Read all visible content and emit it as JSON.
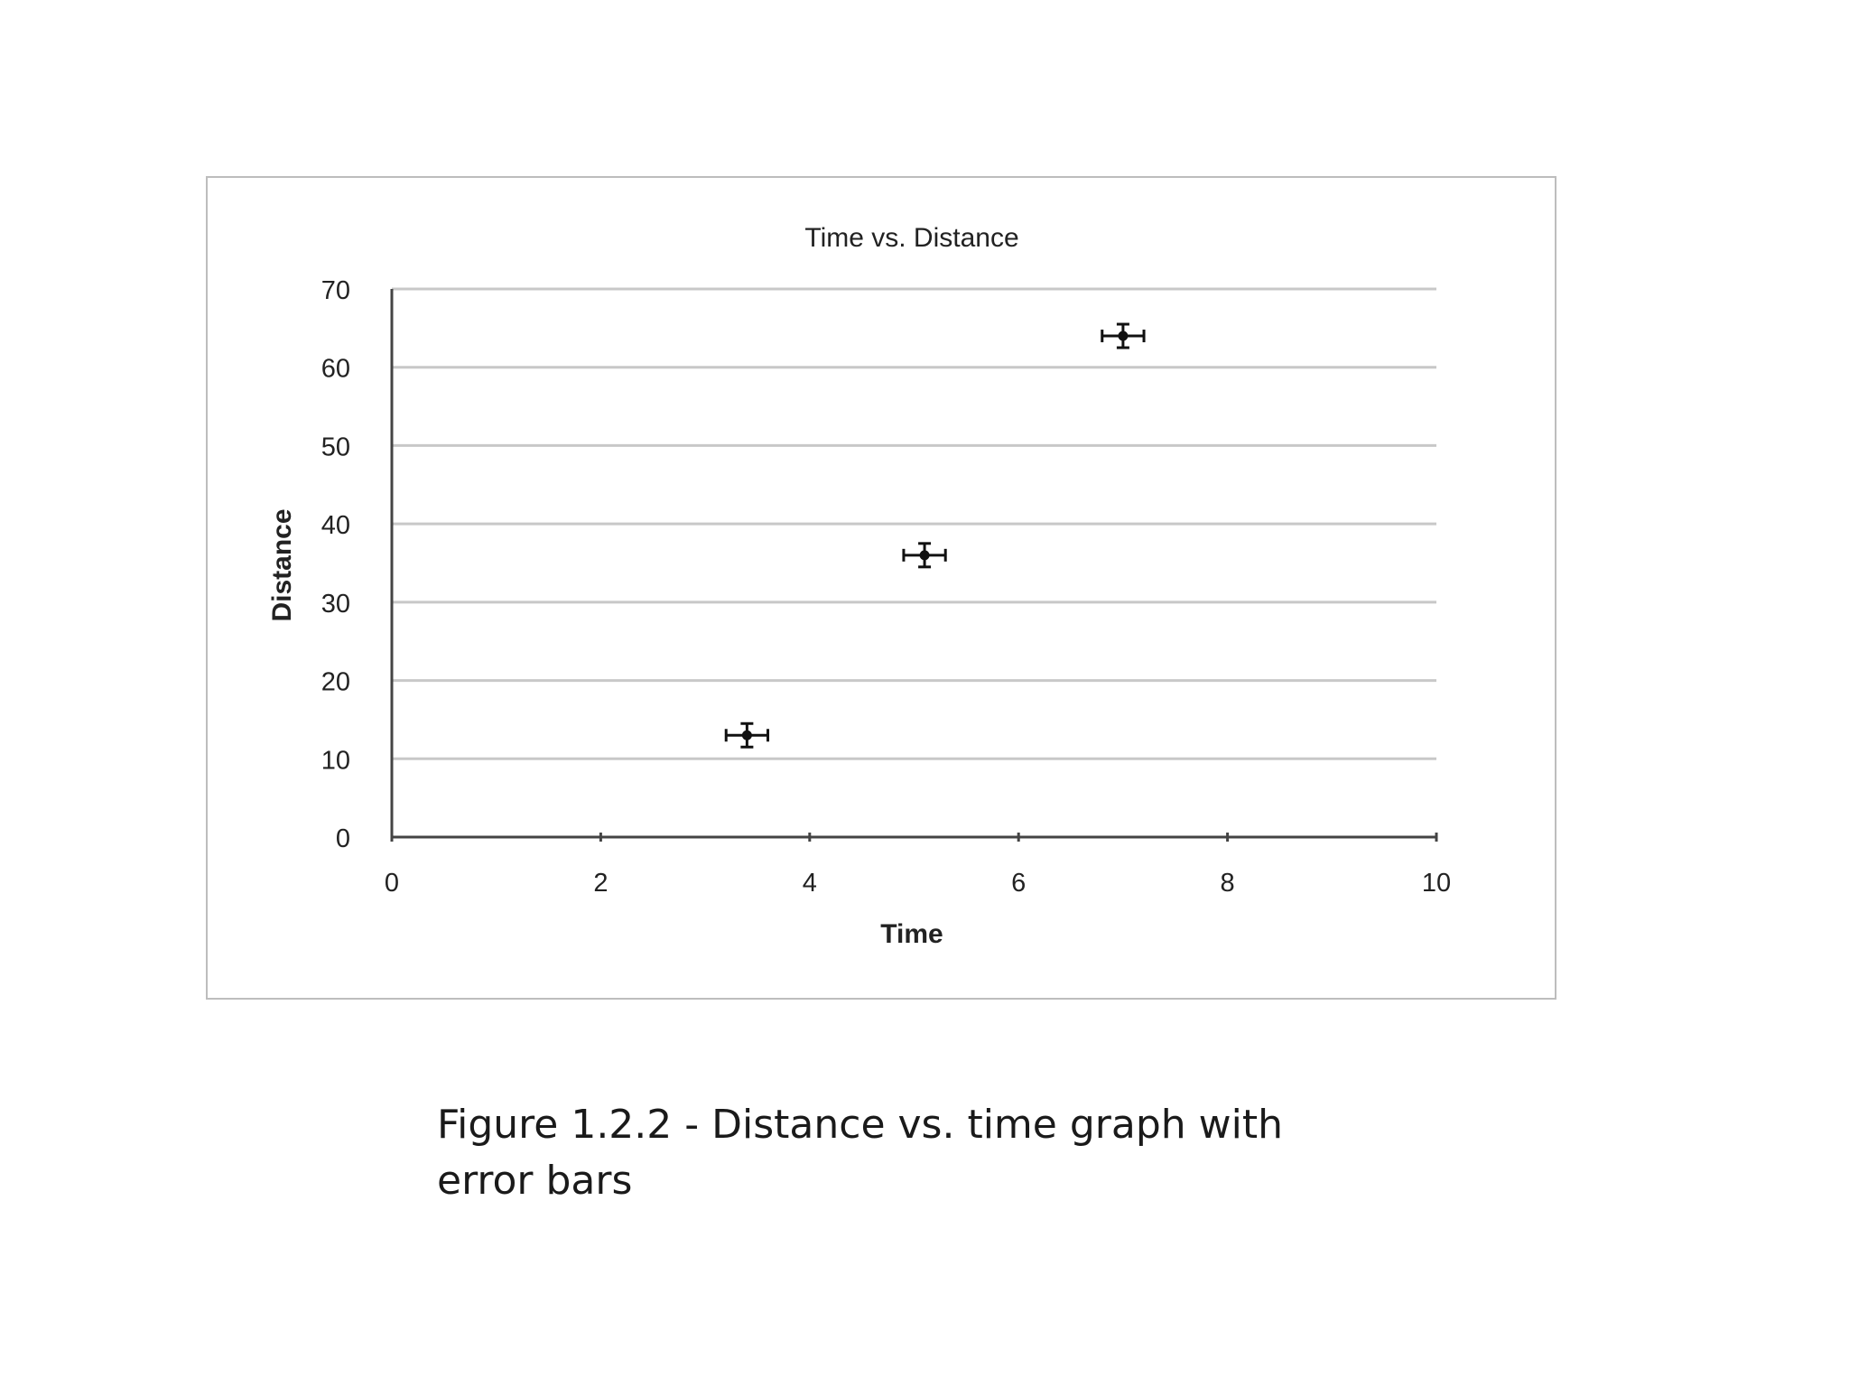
{
  "chart_data": {
    "type": "scatter",
    "title": "Time vs. Distance",
    "xlabel": "Time",
    "ylabel": "Distance",
    "xlim": [
      0,
      10
    ],
    "ylim": [
      0,
      70
    ],
    "xticks": [
      "0",
      "2",
      "4",
      "6",
      "8",
      "10"
    ],
    "yticks": [
      "0",
      "10",
      "20",
      "30",
      "40",
      "50",
      "60",
      "70"
    ],
    "grid": "horizontal",
    "legend": "none",
    "points": [
      {
        "x": 3.4,
        "y": 13,
        "x_err": 0.2,
        "y_err": 1.5
      },
      {
        "x": 5.1,
        "y": 36,
        "x_err": 0.2,
        "y_err": 1.5
      },
      {
        "x": 7.0,
        "y": 64,
        "x_err": 0.2,
        "y_err": 1.5
      }
    ],
    "colors": {
      "marker": "#111111",
      "axis": "#444444",
      "grid": "#c8c8c8"
    }
  },
  "caption": "Figure 1.2.2 - Distance vs. time graph with error bars"
}
